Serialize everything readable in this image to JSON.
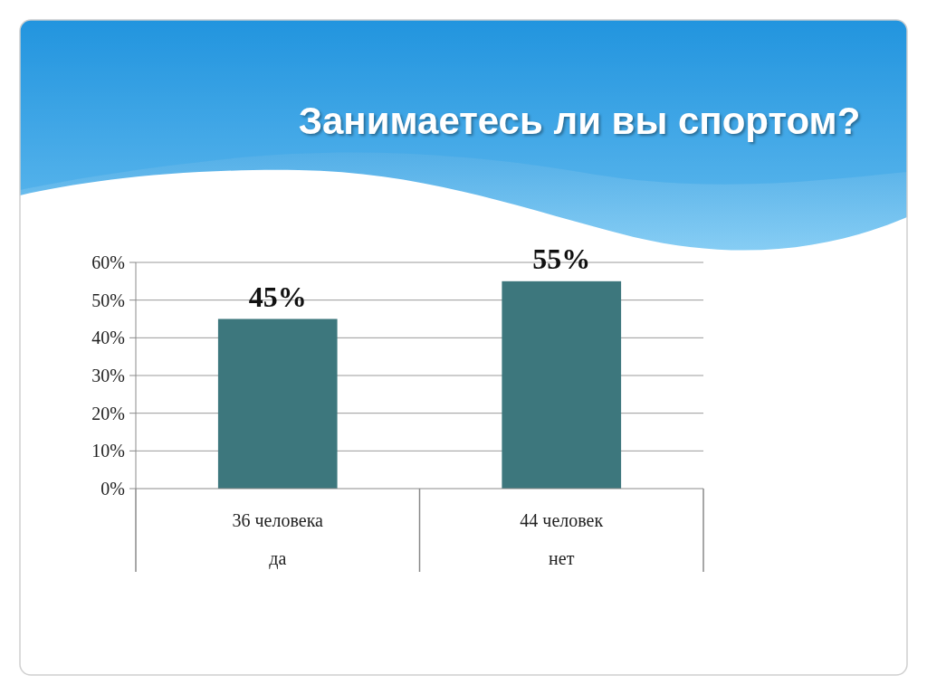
{
  "chart_data": {
    "type": "bar",
    "title": "Занимаетесь ли вы спортом?",
    "categories": [
      "36 человека\nда",
      "44 человек\nнет"
    ],
    "values": [
      45,
      55
    ],
    "color": "#3d777d",
    "value_labels": [
      "45%",
      "55%"
    ],
    "ylim": [
      0,
      60
    ],
    "yticks": [
      {
        "value": 0,
        "label": "0%"
      },
      {
        "value": 10,
        "label": "10%"
      },
      {
        "value": 20,
        "label": "20%"
      },
      {
        "value": 30,
        "label": "30%"
      },
      {
        "value": 40,
        "label": "40%"
      },
      {
        "value": 50,
        "label": "50%"
      },
      {
        "value": 60,
        "label": "60%"
      }
    ],
    "grid": "y"
  }
}
